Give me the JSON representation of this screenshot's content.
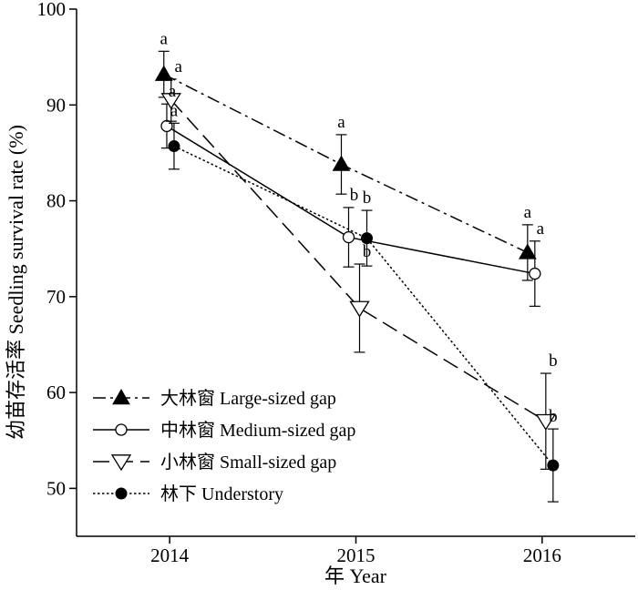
{
  "chart_data": {
    "type": "line",
    "xlabel": "年 Year",
    "ylabel": "幼苗存活率 Seedling survival rate (%)",
    "x": [
      2014,
      2015,
      2016
    ],
    "x_ticks": [
      "2014",
      "2015",
      "2016"
    ],
    "xlim": [
      2013.5,
      2016.5
    ],
    "ylim": [
      45,
      100
    ],
    "y_ticks": [
      50,
      60,
      70,
      80,
      90,
      100
    ],
    "grid": false,
    "legend_position": "bottom-left",
    "series": [
      {
        "name": "大林窗 Large-sized gap",
        "marker": "filled-triangle-up",
        "line_style": "dashdot",
        "x": [
          2014,
          2015,
          2016
        ],
        "values": [
          93.2,
          83.8,
          74.6
        ],
        "error": [
          2.4,
          3.1,
          2.9
        ],
        "significance": [
          "a",
          "a",
          "a"
        ]
      },
      {
        "name": "中林窗 Medium-sized gap",
        "marker": "open-circle",
        "line_style": "solid",
        "x": [
          2014,
          2015,
          2016
        ],
        "values": [
          87.8,
          76.2,
          72.4
        ],
        "error": [
          2.3,
          3.1,
          3.4
        ],
        "significance": [
          "a",
          "b",
          "a"
        ]
      },
      {
        "name": "小林窗 Small-sized gap",
        "marker": "open-triangle-down",
        "line_style": "dashed",
        "x": [
          2014,
          2015,
          2016
        ],
        "values": [
          90.5,
          68.8,
          57.0
        ],
        "error": [
          2.2,
          4.6,
          5.0
        ],
        "significance": [
          "a",
          "b",
          "b"
        ]
      },
      {
        "name": "林下 Understory",
        "marker": "filled-circle",
        "line_style": "dotted",
        "x": [
          2014,
          2015,
          2016
        ],
        "values": [
          85.7,
          76.1,
          52.4
        ],
        "error": [
          2.4,
          2.9,
          3.8
        ],
        "significance": [
          "a",
          "b",
          "b"
        ]
      }
    ]
  }
}
